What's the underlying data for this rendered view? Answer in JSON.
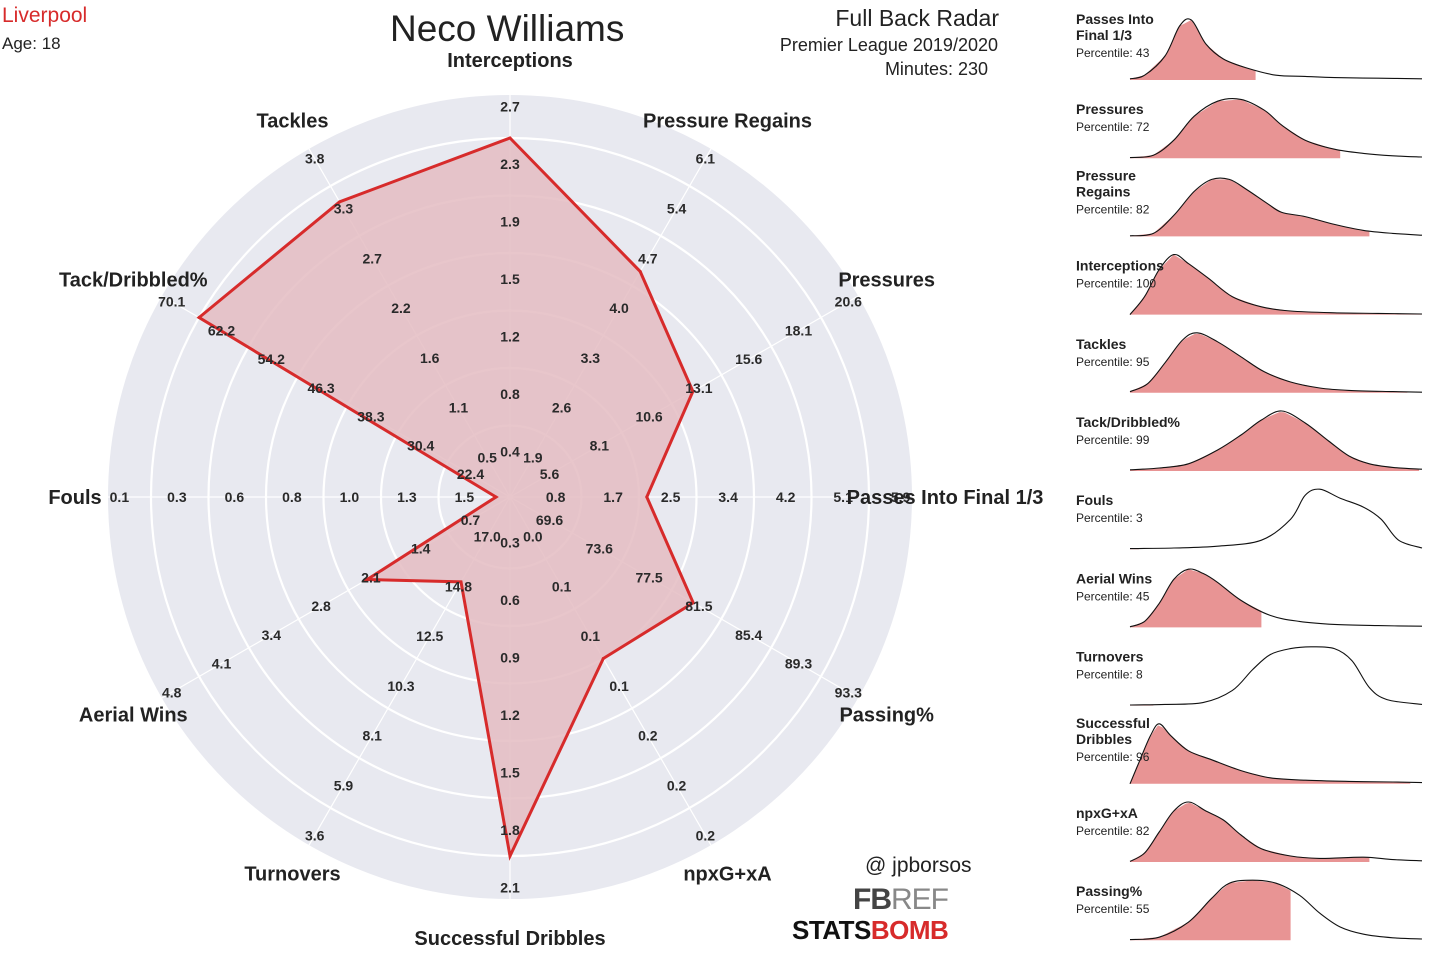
{
  "header": {
    "team": "Liverpool",
    "age": "Age: 18",
    "player": "Neco Williams",
    "radar_title": "Full Back Radar",
    "league": "Premier League 2019/2020",
    "minutes": "Minutes: 230"
  },
  "credits": {
    "handle": "@ jpborsos",
    "fbref_main": "FB",
    "fbref_suffix": "REF",
    "statsbomb_main": "STATS",
    "statsbomb_accent": "BOMB"
  },
  "colors": {
    "accent": "#d72b2b",
    "polygon_fill": "#e4bcc2",
    "background_disc": "#e8e9f0",
    "density_fill": "#e89494"
  },
  "chart_data": [
    {
      "type": "radar",
      "title": "",
      "axes": [
        {
          "label": "Interceptions",
          "ticks": [
            "0.4",
            "0.8",
            "1.2",
            "1.5",
            "1.9",
            "2.3",
            "2.7"
          ],
          "range": [
            0.0,
            2.7
          ],
          "value": 2.7
        },
        {
          "label": "Pressure Regains",
          "ticks": [
            "1.9",
            "2.6",
            "3.3",
            "4.0",
            "4.7",
            "5.4",
            "6.1"
          ],
          "range": [
            1.2,
            6.1
          ],
          "value": 4.7
        },
        {
          "label": "Pressures",
          "ticks": [
            "5.6",
            "8.1",
            "10.6",
            "13.1",
            "15.6",
            "18.1",
            "20.6"
          ],
          "range": [
            3.1,
            20.6
          ],
          "value": 13.1
        },
        {
          "label": "Passes Into Final 1/3",
          "ticks": [
            "0.8",
            "1.7",
            "2.5",
            "3.4",
            "4.2",
            "5.1",
            "5.9"
          ],
          "range": [
            0.0,
            5.9
          ],
          "value": 2.1
        },
        {
          "label": "Passing%",
          "ticks": [
            "69.6",
            "73.6",
            "77.5",
            "81.5",
            "85.4",
            "89.3",
            "93.3"
          ],
          "range": [
            65.7,
            93.3
          ],
          "value": 81.5
        },
        {
          "label": "npxG+xA",
          "ticks": [
            "0.0",
            "0.1",
            "0.1",
            "0.1",
            "0.2",
            "0.2",
            "0.2"
          ],
          "range": [
            0.0,
            0.2
          ],
          "value": 0.1
        },
        {
          "label": "Successful Dribbles",
          "ticks": [
            "0.3",
            "0.6",
            "0.9",
            "1.2",
            "1.5",
            "1.8",
            "2.1"
          ],
          "range": [
            0.0,
            2.1
          ],
          "value": 2.1
        },
        {
          "label": "Turnovers",
          "ticks": [
            "17.0",
            "14.8",
            "12.5",
            "10.3",
            "8.1",
            "5.9",
            "3.6"
          ],
          "range": [
            19.2,
            3.6
          ],
          "value": 15.4
        },
        {
          "label": "Aerial Wins",
          "ticks": [
            "0.7",
            "1.4",
            "2.1",
            "2.8",
            "3.4",
            "4.1",
            "4.8"
          ],
          "range": [
            0.0,
            4.8
          ],
          "value": 2.1
        },
        {
          "label": "Fouls",
          "ticks": [
            "1.5",
            "1.3",
            "1.0",
            "0.8",
            "0.6",
            "0.3",
            "0.1"
          ],
          "range": [
            1.7,
            0.1
          ],
          "value": 1.7
        },
        {
          "label": "Tack/Dribbled%",
          "ticks": [
            "22.4",
            "30.4",
            "38.3",
            "46.3",
            "54.2",
            "62.2",
            "70.1"
          ],
          "range": [
            14.5,
            70.1
          ],
          "value": 70.1
        },
        {
          "label": "Tackles",
          "ticks": [
            "0.5",
            "1.1",
            "1.6",
            "2.2",
            "2.7",
            "3.3",
            "3.8"
          ],
          "range": [
            0.0,
            3.8
          ],
          "value": 3.6
        }
      ]
    },
    {
      "type": "area",
      "description_free": true,
      "panels": [
        {
          "label_lines": [
            "Passes Into",
            "Final 1/3"
          ],
          "percentile_text": "Percentile: 43",
          "percentile": 43,
          "shape": "p1"
        },
        {
          "label_lines": [
            "Pressures"
          ],
          "percentile_text": "Percentile: 72",
          "percentile": 72,
          "shape": "p2"
        },
        {
          "label_lines": [
            "Pressure",
            "Regains"
          ],
          "percentile_text": "Percentile: 82",
          "percentile": 82,
          "shape": "p3"
        },
        {
          "label_lines": [
            "Interceptions"
          ],
          "percentile_text": "Percentile: 100",
          "percentile": 100,
          "shape": "p4"
        },
        {
          "label_lines": [
            "Tackles"
          ],
          "percentile_text": "Percentile: 95",
          "percentile": 95,
          "shape": "p5"
        },
        {
          "label_lines": [
            "Tack/Dribbled%"
          ],
          "percentile_text": "Percentile: 99",
          "percentile": 99,
          "shape": "p6"
        },
        {
          "label_lines": [
            "Fouls"
          ],
          "percentile_text": "Percentile: 3",
          "percentile": 3,
          "shape": "p7"
        },
        {
          "label_lines": [
            "Aerial Wins"
          ],
          "percentile_text": "Percentile: 45",
          "percentile": 45,
          "shape": "p8"
        },
        {
          "label_lines": [
            "Turnovers"
          ],
          "percentile_text": "Percentile: 8",
          "percentile": 8,
          "shape": "p9"
        },
        {
          "label_lines": [
            "Successful",
            "Dribbles"
          ],
          "percentile_text": "Percentile: 96",
          "percentile": 96,
          "shape": "p10"
        },
        {
          "label_lines": [
            "npxG+xA"
          ],
          "percentile_text": "Percentile: 82",
          "percentile": 82,
          "shape": "p11"
        },
        {
          "label_lines": [
            "Passing%"
          ],
          "percentile_text": "Percentile: 55",
          "percentile": 55,
          "shape": "p12"
        }
      ]
    }
  ]
}
